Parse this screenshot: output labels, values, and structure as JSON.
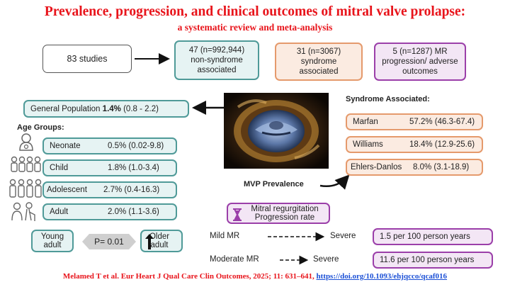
{
  "title": "Prevalence, progression, and clinical outcomes of mitral valve prolapse:",
  "subtitle": "a systematic review and meta-analysis",
  "top_row": {
    "studies": "83 studies",
    "non_syndrome": "47 (n=992,944) non-syndrome associated",
    "syndrome": "31 (n=3067) syndrome associated",
    "outcomes": "5 (n=1287) MR progression/ adverse outcomes"
  },
  "general_population": {
    "label": "General Population",
    "value": "1.4%",
    "ci": "(0.8 - 2.2)"
  },
  "age_groups": {
    "heading": "Age Groups:",
    "items": [
      {
        "name": "Neonate",
        "value": "0.5% (0.02-9.8)",
        "icon": "baby-icon"
      },
      {
        "name": "Child",
        "value": "1.8% (1.0-3.4)",
        "icon": "children-icon"
      },
      {
        "name": "Adolescent",
        "value": "2.7% (0.4-16.3)",
        "icon": "adolescents-icon"
      },
      {
        "name": "Adult",
        "value": "2.0% (1.1-3.6)",
        "icon": "adults-icon"
      }
    ]
  },
  "comparison": {
    "young": "Young adult",
    "p": "P= 0.01",
    "older": "Older adult"
  },
  "image_caption": "MVP Prevalence",
  "syndrome": {
    "heading": "Syndrome Associated:",
    "items": [
      {
        "name": "Marfan",
        "value": "57.2% (46.3-67.4)"
      },
      {
        "name": "Williams",
        "value": "18.4% (12.9-25.6)"
      },
      {
        "name": "Ehlers-Danlos",
        "value": "8.0% (3.1-18.9)"
      }
    ]
  },
  "mr": {
    "heading_line1": "Mitral regurgitation",
    "heading_line2": "Progression rate",
    "rows": [
      {
        "from": "Mild MR",
        "to": "Severe",
        "rate": "1.5 per 100 person years"
      },
      {
        "from": "Moderate MR",
        "to": "Severe",
        "rate": "11.6 per 100 person years"
      }
    ]
  },
  "citation": {
    "text": "Melamed T et al. Eur Heart J Qual Care Clin Outcomes, 2025; 11: 631–641, ",
    "link": "https://doi.org/10.1093/ehjqcco/qcaf016"
  },
  "colors": {
    "title": "#e8141b",
    "teal": "#4f9a98",
    "orange": "#e59a6c",
    "purple": "#9b3fa9"
  }
}
